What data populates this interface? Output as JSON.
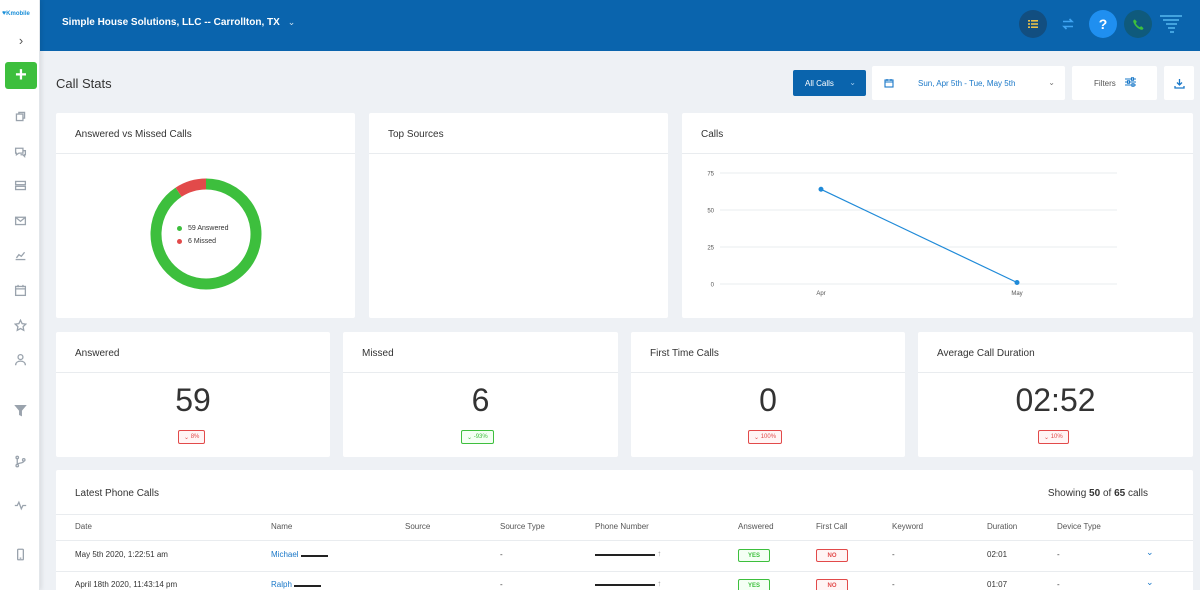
{
  "sidebar": {
    "logo_text": "Kmobile",
    "items": [
      {
        "name": "copy-icon"
      },
      {
        "name": "chat-icon"
      },
      {
        "name": "stack-icon"
      },
      {
        "name": "mail-icon"
      },
      {
        "name": "chart-icon"
      },
      {
        "name": "calendar-icon"
      },
      {
        "name": "star-icon"
      },
      {
        "name": "user-icon"
      },
      {
        "name": "filter-icon"
      },
      {
        "name": "branch-icon"
      },
      {
        "name": "pulse-icon"
      },
      {
        "name": "mobile-icon"
      }
    ]
  },
  "topbar": {
    "company": "Simple House Solutions, LLC -- Carrollton, TX",
    "help_label": "?"
  },
  "header": {
    "title": "Call Stats",
    "all_calls": "All Calls",
    "date_range": "Sun, Apr 5th - Tue, May 5th",
    "filters": "Filters"
  },
  "cards": {
    "answered_vs_missed": {
      "title": "Answered vs Missed Calls",
      "answered_legend": "59 Answered",
      "missed_legend": "6 Missed"
    },
    "top_sources": {
      "title": "Top Sources"
    },
    "calls_chart": {
      "title": "Calls"
    }
  },
  "stats": [
    {
      "title": "Answered",
      "value": "59",
      "badge": "8%",
      "trend": "down",
      "badge_color": "red"
    },
    {
      "title": "Missed",
      "value": "6",
      "badge": "-93%",
      "trend": "down",
      "badge_color": "green"
    },
    {
      "title": "First Time Calls",
      "value": "0",
      "badge": "100%",
      "trend": "down",
      "badge_color": "red"
    },
    {
      "title": "Average Call Duration",
      "value": "02:52",
      "badge": "10%",
      "trend": "down",
      "badge_color": "red"
    }
  ],
  "table": {
    "title": "Latest Phone Calls",
    "count_prefix": "Showing",
    "count_shown": "50",
    "count_of": "of",
    "count_total": "65",
    "count_suffix": "calls",
    "headers": [
      "Date",
      "Name",
      "Source",
      "Source Type",
      "Phone Number",
      "Answered",
      "First Call",
      "Keyword",
      "Duration",
      "Device Type"
    ],
    "rows": [
      {
        "date": "May 5th 2020, 1:22:51 am",
        "name": "Michael",
        "source": "",
        "source_type": "-",
        "answered": "YES",
        "first_call": "NO",
        "keyword": "-",
        "duration": "02:01",
        "device_type": "-"
      },
      {
        "date": "April 18th 2020, 11:43:14 pm",
        "name": "Ralph",
        "source": "",
        "source_type": "-",
        "answered": "YES",
        "first_call": "NO",
        "keyword": "-",
        "duration": "01:07",
        "device_type": "-"
      }
    ]
  },
  "colors": {
    "primary": "#0a64ad",
    "answered_green": "#3dbf3d",
    "missed_red": "#e24a4a",
    "line_blue": "#1f8ad8"
  },
  "chart_data": [
    {
      "type": "pie",
      "title": "Answered vs Missed Calls",
      "categories": [
        "Answered",
        "Missed"
      ],
      "values": [
        59,
        6
      ],
      "colors": [
        "#3dbf3d",
        "#e24a4a"
      ],
      "donut": true
    },
    {
      "type": "line",
      "title": "Calls",
      "categories": [
        "Apr",
        "May"
      ],
      "values": [
        64,
        1
      ],
      "ylim": [
        0,
        75
      ],
      "yticks": [
        "0",
        "25",
        "50",
        "75"
      ],
      "grid": true
    }
  ]
}
